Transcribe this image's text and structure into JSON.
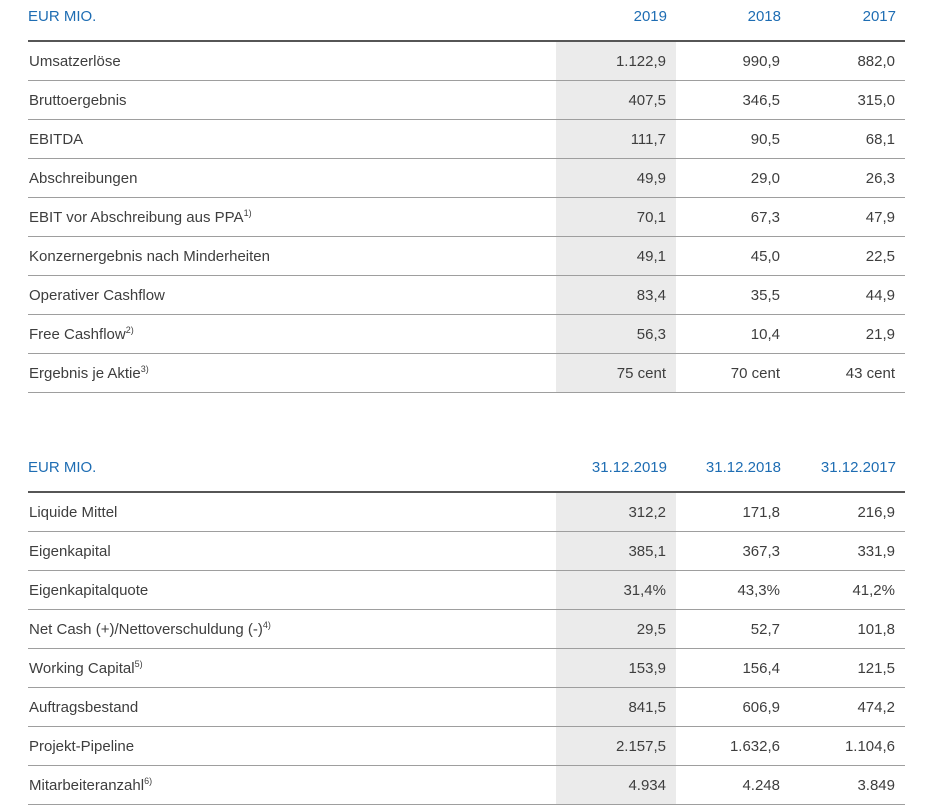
{
  "colors": {
    "accent_blue": "#1e6db3",
    "body_text": "#3e3e3e",
    "highlight_column_bg": "#ebebeb",
    "header_rule": "#565656",
    "row_rule": "#9e9e9e"
  },
  "tables": [
    {
      "name": "income-statement-kpis",
      "header": {
        "label": "EUR MIO.",
        "columns": [
          "2019",
          "2018",
          "2017"
        ]
      },
      "rows": [
        {
          "label": "Umsatzerlöse",
          "sup": "",
          "values": [
            "1.122,9",
            "990,9",
            "882,0"
          ]
        },
        {
          "label": "Bruttoergebnis",
          "sup": "",
          "values": [
            "407,5",
            "346,5",
            "315,0"
          ]
        },
        {
          "label": "EBITDA",
          "sup": "",
          "values": [
            "111,7",
            "90,5",
            "68,1"
          ]
        },
        {
          "label": "Abschreibungen",
          "sup": "",
          "values": [
            "49,9",
            "29,0",
            "26,3"
          ]
        },
        {
          "label": "EBIT vor Abschreibung aus PPA",
          "sup": "1)",
          "values": [
            "70,1",
            "67,3",
            "47,9"
          ]
        },
        {
          "label": "Konzernergebnis nach Minderheiten",
          "sup": "",
          "values": [
            "49,1",
            "45,0",
            "22,5"
          ]
        },
        {
          "label": "Operativer Cashflow",
          "sup": "",
          "values": [
            "83,4",
            "35,5",
            "44,9"
          ]
        },
        {
          "label": "Free Cashflow",
          "sup": "2)",
          "values": [
            "56,3",
            "10,4",
            "21,9"
          ]
        },
        {
          "label": "Ergebnis je Aktie",
          "sup": "3)",
          "values": [
            "75 cent",
            "70 cent",
            "43 cent"
          ]
        }
      ]
    },
    {
      "name": "balance-sheet-kpis",
      "header": {
        "label": "EUR MIO.",
        "columns": [
          "31.12.2019",
          "31.12.2018",
          "31.12.2017"
        ]
      },
      "rows": [
        {
          "label": "Liquide Mittel",
          "sup": "",
          "values": [
            "312,2",
            "171,8",
            "216,9"
          ]
        },
        {
          "label": "Eigenkapital",
          "sup": "",
          "values": [
            "385,1",
            "367,3",
            "331,9"
          ]
        },
        {
          "label": "Eigenkapitalquote",
          "sup": "",
          "values": [
            "31,4%",
            "43,3%",
            "41,2%"
          ]
        },
        {
          "label": "Net Cash (+)/Nettoverschuldung (-)",
          "sup": "4)",
          "values": [
            "29,5",
            "52,7",
            "101,8"
          ]
        },
        {
          "label": "Working Capital",
          "sup": "5)",
          "values": [
            "153,9",
            "156,4",
            "121,5"
          ]
        },
        {
          "label": "Auftragsbestand",
          "sup": "",
          "values": [
            "841,5",
            "606,9",
            "474,2"
          ]
        },
        {
          "label": "Projekt-Pipeline",
          "sup": "",
          "values": [
            "2.157,5",
            "1.632,6",
            "1.104,6"
          ]
        },
        {
          "label": "Mitarbeiteranzahl",
          "sup": "6)",
          "values": [
            "4.934",
            "4.248",
            "3.849"
          ]
        }
      ]
    }
  ]
}
